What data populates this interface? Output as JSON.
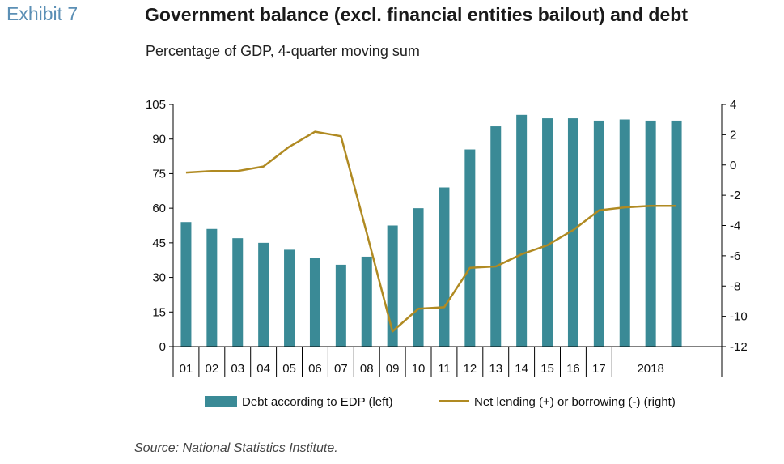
{
  "header": {
    "exhibit_label": "Exhibit 7",
    "title": "Government balance (excl. financial entities bailout) and debt",
    "subtitle": "Percentage of GDP, 4-quarter moving sum"
  },
  "footer": {
    "source": "Source: National Statistics Institute."
  },
  "colors": {
    "bars": "#3a8a96",
    "line": "#b08a22",
    "axis": "#000000"
  },
  "chart_data": {
    "type": "bar",
    "x_labels": [
      "01",
      "02",
      "03",
      "04",
      "05",
      "06",
      "07",
      "08",
      "09",
      "10",
      "11",
      "12",
      "13",
      "14",
      "15",
      "16",
      "17",
      "",
      "2018",
      ""
    ],
    "left_axis": {
      "min": 0,
      "max": 105,
      "ticks": [
        0,
        15,
        30,
        45,
        60,
        75,
        90,
        105
      ]
    },
    "right_axis": {
      "min": -12,
      "max": 4,
      "ticks": [
        -12,
        -10,
        -8,
        -6,
        -4,
        -2,
        0,
        2,
        4
      ]
    },
    "grid": false,
    "legend_position": "bottom",
    "series": [
      {
        "name": "Debt according to EDP (left)",
        "type": "bar",
        "axis": "left",
        "values": [
          54,
          51,
          47,
          45,
          42,
          38.5,
          35.5,
          39,
          52.5,
          60,
          69,
          85.5,
          95.5,
          100.5,
          99,
          99,
          98,
          98.5,
          98,
          98
        ]
      },
      {
        "name": "Net lending (+) or borrowing (-) (right)",
        "type": "line",
        "axis": "right",
        "values": [
          -0.5,
          -0.4,
          -0.4,
          -0.1,
          1.2,
          2.2,
          1.9,
          -4.5,
          -11,
          -9.5,
          -9.4,
          -6.8,
          -6.7,
          -5.9,
          -5.3,
          -4.3,
          -3,
          -2.8,
          -2.7,
          -2.7
        ]
      }
    ]
  }
}
